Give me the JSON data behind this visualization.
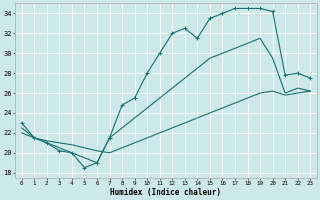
{
  "xlabel": "Humidex (Indice chaleur)",
  "xlim": [
    -0.5,
    23.5
  ],
  "ylim": [
    17.5,
    35.0
  ],
  "yticks": [
    18,
    20,
    22,
    24,
    26,
    28,
    30,
    32,
    34
  ],
  "xticks": [
    0,
    1,
    2,
    3,
    4,
    5,
    6,
    7,
    8,
    9,
    10,
    11,
    12,
    13,
    14,
    15,
    16,
    17,
    18,
    19,
    20,
    21,
    22,
    23
  ],
  "bg_color": "#cce8e8",
  "grid_color": "#b0d0d0",
  "line_color": "#1a7070",
  "line1_y": [
    23.0,
    21.5,
    21.0,
    20.2,
    20.0,
    18.5,
    19.0,
    21.5,
    24.8,
    25.5,
    28.0,
    30.0,
    32.0,
    32.5,
    31.5,
    33.5,
    34.0,
    34.5,
    34.5,
    34.5,
    34.2,
    27.8,
    28.0,
    27.5
  ],
  "line2_y": [
    22.5,
    21.5,
    21.0,
    20.5,
    20.0,
    19.5,
    19.0,
    21.5,
    22.5,
    23.5,
    24.5,
    25.5,
    26.5,
    27.5,
    28.5,
    29.5,
    30.0,
    30.5,
    31.0,
    31.5,
    29.5,
    26.0,
    26.5,
    26.2
  ],
  "line3_y": [
    22.0,
    21.5,
    21.2,
    21.0,
    20.8,
    20.5,
    20.2,
    20.0,
    20.5,
    21.0,
    21.5,
    22.0,
    22.5,
    23.0,
    23.5,
    24.0,
    24.5,
    25.0,
    25.5,
    26.0,
    26.2,
    25.8,
    26.0,
    26.2
  ]
}
